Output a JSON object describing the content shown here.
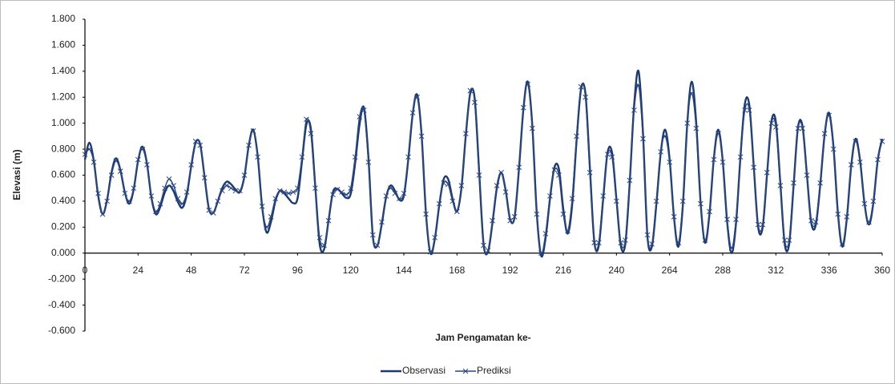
{
  "chart_data": {
    "type": "line",
    "y_label": "Elevasi (m)",
    "x_label": "Jam Pengamatan ke-",
    "xlim": [
      0,
      360
    ],
    "xticks": [
      0,
      24,
      48,
      72,
      96,
      120,
      144,
      168,
      192,
      216,
      240,
      264,
      288,
      312,
      336,
      360
    ],
    "ylim": [
      -0.6,
      1.8
    ],
    "yticks": [
      {
        "value": -0.6,
        "label": "-0.600"
      },
      {
        "value": -0.4,
        "label": "-0.400"
      },
      {
        "value": -0.2,
        "label": "-0.200"
      },
      {
        "value": 0,
        "label": "0.000"
      },
      {
        "value": 0.2,
        "label": "0.200"
      },
      {
        "value": 0.4,
        "label": "0.400"
      },
      {
        "value": 0.6,
        "label": "0.600"
      },
      {
        "value": 0.8,
        "label": "0.800"
      },
      {
        "value": 1.0,
        "label": "1.000"
      },
      {
        "value": 1.2,
        "label": "1.200"
      },
      {
        "value": 1.4,
        "label": "1.400"
      },
      {
        "value": 1.6,
        "label": "1.600"
      },
      {
        "value": 1.8,
        "label": "1.800"
      }
    ],
    "grid": false,
    "legend": "bottom",
    "x": [
      0,
      2,
      4,
      6,
      8,
      10,
      12,
      14,
      16,
      18,
      20,
      22,
      24,
      26,
      28,
      30,
      32,
      34,
      36,
      38,
      40,
      42,
      44,
      46,
      48,
      50,
      52,
      54,
      56,
      58,
      60,
      62,
      64,
      66,
      68,
      70,
      72,
      74,
      76,
      78,
      80,
      82,
      84,
      86,
      88,
      90,
      92,
      94,
      96,
      98,
      100,
      102,
      104,
      106,
      108,
      110,
      112,
      114,
      116,
      118,
      120,
      122,
      124,
      126,
      128,
      130,
      132,
      134,
      136,
      138,
      140,
      142,
      144,
      146,
      148,
      150,
      152,
      154,
      156,
      158,
      160,
      162,
      164,
      166,
      168,
      170,
      172,
      174,
      176,
      178,
      180,
      182,
      184,
      186,
      188,
      190,
      192,
      194,
      196,
      198,
      200,
      202,
      204,
      206,
      208,
      210,
      212,
      214,
      216,
      218,
      220,
      222,
      224,
      226,
      228,
      230,
      232,
      234,
      236,
      238,
      240,
      242,
      244,
      246,
      248,
      250,
      252,
      254,
      256,
      258,
      260,
      262,
      264,
      266,
      268,
      270,
      272,
      274,
      276,
      278,
      280,
      282,
      284,
      286,
      288,
      290,
      292,
      294,
      296,
      298,
      300,
      302,
      304,
      306,
      308,
      310,
      312,
      314,
      316,
      318,
      320,
      322,
      324,
      326,
      328,
      330,
      332,
      334,
      336,
      338,
      340,
      342,
      344,
      346,
      348,
      350,
      352,
      354,
      356,
      358,
      360
    ],
    "series": [
      {
        "name": "Observasi",
        "color": "#1c3a72",
        "marker": "none",
        "values": [
          0.72,
          0.85,
          0.71,
          0.44,
          0.3,
          0.41,
          0.62,
          0.73,
          0.64,
          0.47,
          0.38,
          0.49,
          0.71,
          0.82,
          0.69,
          0.43,
          0.3,
          0.355,
          0.465,
          0.52,
          0.478,
          0.393,
          0.35,
          0.45,
          0.67,
          0.85,
          0.84,
          0.59,
          0.34,
          0.31,
          0.4,
          0.5,
          0.55,
          0.53,
          0.49,
          0.47,
          0.59,
          0.83,
          0.95,
          0.75,
          0.36,
          0.16,
          0.24,
          0.4,
          0.48,
          0.46,
          0.42,
          0.385,
          0.42,
          0.705,
          0.99,
          0.96,
          0.515,
          0.07,
          0.03,
          0.25,
          0.47,
          0.495,
          0.46,
          0.425,
          0.455,
          0.69,
          0.99,
          1.12,
          0.74,
          0.13,
          0.055,
          0.22,
          0.43,
          0.52,
          0.48,
          0.41,
          0.44,
          0.72,
          1.07,
          1.22,
          0.915,
          0.305,
          0.0,
          0.11,
          0.37,
          0.57,
          0.57,
          0.42,
          0.32,
          0.5,
          0.91,
          1.23,
          1.19,
          0.63,
          0.07,
          0.01,
          0.23,
          0.5,
          0.62,
          0.48,
          0.26,
          0.275,
          0.65,
          1.11,
          1.32,
          0.985,
          0.315,
          -0.02,
          0.115,
          0.42,
          0.66,
          0.65,
          0.34,
          0.15,
          0.37,
          0.865,
          1.26,
          1.23,
          0.66,
          0.09,
          0.055,
          0.415,
          0.775,
          0.775,
          0.415,
          0.055,
          0.07,
          0.545,
          1.14,
          1.4,
          0.92,
          0.13,
          0.05,
          0.37,
          0.77,
          0.95,
          0.725,
          0.275,
          0.05,
          0.37,
          1.0,
          1.32,
          1.01,
          0.39,
          0.08,
          0.3,
          0.73,
          0.95,
          0.71,
          0.24,
          0.0,
          0.23,
          0.74,
          1.15,
          1.14,
          0.67,
          0.2,
          0.195,
          0.605,
          1.015,
          1.01,
          0.54,
          0.07,
          0.07,
          0.52,
          0.97,
          0.98,
          0.605,
          0.23,
          0.215,
          0.52,
          0.91,
          1.08,
          0.82,
          0.31,
          0.05,
          0.26,
          0.67,
          0.88,
          0.715,
          0.385,
          0.22,
          0.385,
          0.715,
          0.88
        ]
      },
      {
        "name": "Prediksi",
        "color": "#2a4785",
        "marker": "x",
        "values": [
          0.76,
          0.8,
          0.7,
          0.46,
          0.3,
          0.4,
          0.6,
          0.71,
          0.63,
          0.46,
          0.4,
          0.5,
          0.72,
          0.8,
          0.68,
          0.44,
          0.32,
          0.38,
          0.5,
          0.57,
          0.52,
          0.42,
          0.38,
          0.47,
          0.68,
          0.86,
          0.83,
          0.58,
          0.33,
          0.31,
          0.4,
          0.48,
          0.52,
          0.5,
          0.48,
          0.48,
          0.6,
          0.83,
          0.94,
          0.74,
          0.36,
          0.2,
          0.28,
          0.42,
          0.48,
          0.47,
          0.46,
          0.47,
          0.5,
          0.74,
          1.03,
          0.92,
          0.5,
          0.12,
          0.06,
          0.25,
          0.45,
          0.49,
          0.47,
          0.45,
          0.5,
          0.74,
          1.05,
          1.1,
          0.7,
          0.14,
          0.06,
          0.24,
          0.44,
          0.5,
          0.46,
          0.42,
          0.46,
          0.74,
          1.08,
          1.2,
          0.9,
          0.3,
          0.01,
          0.12,
          0.38,
          0.54,
          0.53,
          0.4,
          0.32,
          0.52,
          0.92,
          1.25,
          1.16,
          0.6,
          0.06,
          0.02,
          0.25,
          0.52,
          0.62,
          0.47,
          0.25,
          0.28,
          0.66,
          1.12,
          1.3,
          0.96,
          0.3,
          0.0,
          0.15,
          0.44,
          0.64,
          0.6,
          0.3,
          0.17,
          0.42,
          0.9,
          1.28,
          1.2,
          0.62,
          0.08,
          0.08,
          0.44,
          0.76,
          0.74,
          0.4,
          0.08,
          0.1,
          0.56,
          1.1,
          1.29,
          0.88,
          0.14,
          0.07,
          0.4,
          0.78,
          0.9,
          0.7,
          0.28,
          0.08,
          0.4,
          1.0,
          1.23,
          0.96,
          0.38,
          0.1,
          0.32,
          0.72,
          0.92,
          0.7,
          0.26,
          0.04,
          0.26,
          0.74,
          1.1,
          1.1,
          0.66,
          0.22,
          0.22,
          0.62,
          1.0,
          0.97,
          0.52,
          0.1,
          0.1,
          0.54,
          0.96,
          0.96,
          0.6,
          0.25,
          0.24,
          0.54,
          0.92,
          1.06,
          0.8,
          0.3,
          0.07,
          0.28,
          0.68,
          0.86,
          0.7,
          0.38,
          0.24,
          0.4,
          0.72,
          0.86
        ]
      }
    ]
  }
}
